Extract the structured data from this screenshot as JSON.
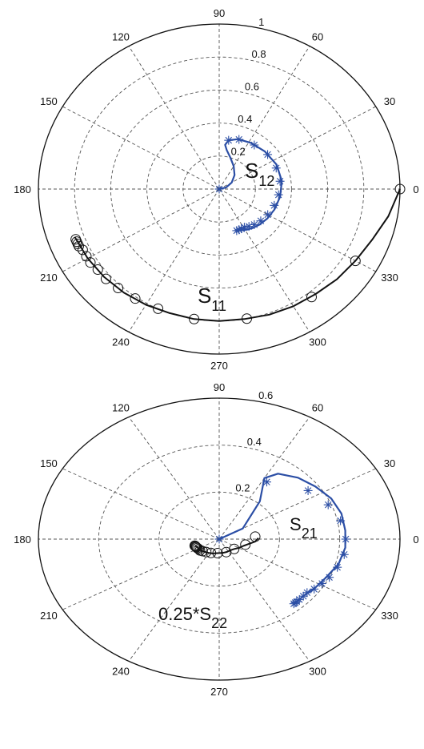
{
  "chart_data": [
    {
      "type": "scatter",
      "subtype": "polar",
      "rmax": 1,
      "radial_ticks": [
        "0.2",
        "0.4",
        "0.6",
        "0.8",
        "1"
      ],
      "angle_labels": [
        "0",
        "30",
        "60",
        "90",
        "120",
        "150",
        "180",
        "210",
        "240",
        "270",
        "300",
        "330"
      ],
      "grid": true,
      "annotations": [
        {
          "base": "S",
          "sub": "12"
        },
        {
          "base": "S",
          "sub": "11"
        }
      ],
      "series": [
        {
          "color": "#2b4ea5",
          "style": "line",
          "theta_deg": [
            0,
            15,
            30,
            45,
            60,
            72,
            80,
            83,
            80,
            71,
            58,
            42,
            25,
            8,
            -8,
            -22,
            -34,
            -44,
            -52,
            -58,
            -63,
            -67,
            -70
          ],
          "r": [
            0.0,
            0.04,
            0.08,
            0.12,
            0.16,
            0.2,
            0.24,
            0.27,
            0.3,
            0.32,
            0.33,
            0.34,
            0.35,
            0.35,
            0.34,
            0.33,
            0.32,
            0.31,
            0.3,
            0.29,
            0.28,
            0.27,
            0.27
          ]
        },
        {
          "color": "#2b4ea5",
          "style": "markers",
          "marker": "asterisk",
          "theta_deg": [
            0,
            80,
            70,
            54,
            38,
            22,
            8,
            -6,
            -18,
            -30,
            -40,
            -48,
            -54,
            -59,
            -63,
            -66,
            -69
          ],
          "r": [
            0.0,
            0.3,
            0.32,
            0.33,
            0.34,
            0.34,
            0.34,
            0.33,
            0.32,
            0.31,
            0.3,
            0.29,
            0.28,
            0.27,
            0.27,
            0.27,
            0.27
          ]
        },
        {
          "color": "#111111",
          "style": "line",
          "theta_deg": [
            0,
            -10,
            -20,
            -30,
            -40,
            -50,
            -60,
            -70,
            -80,
            -90,
            -100,
            -110,
            -120,
            -130,
            -140,
            -150,
            -160
          ],
          "r": [
            1.0,
            0.95,
            0.9,
            0.87,
            0.85,
            0.83,
            0.82,
            0.81,
            0.8,
            0.8,
            0.8,
            0.8,
            0.81,
            0.82,
            0.83,
            0.84,
            0.85
          ]
        },
        {
          "color": "#111111",
          "style": "markers",
          "marker": "circle",
          "theta_deg": [
            0,
            -30,
            -52,
            -79,
            -100,
            -115,
            -125,
            -133,
            -139,
            -144,
            -148,
            -151,
            -154,
            -156,
            -157,
            -158,
            -159
          ],
          "r": [
            1.0,
            0.87,
            0.83,
            0.8,
            0.8,
            0.8,
            0.81,
            0.82,
            0.83,
            0.83,
            0.84,
            0.84,
            0.84,
            0.85,
            0.85,
            0.85,
            0.85
          ]
        }
      ]
    },
    {
      "type": "scatter",
      "subtype": "polar",
      "rmax": 0.6,
      "radial_ticks": [
        "0.2",
        "0.4",
        "0.6"
      ],
      "angle_labels": [
        "0",
        "30",
        "60",
        "90",
        "120",
        "150",
        "180",
        "210",
        "240",
        "270",
        "300",
        "330"
      ],
      "grid": true,
      "annotations": [
        {
          "base": "S",
          "sub": "21"
        },
        {
          "base": "0.25*S",
          "sub": "22"
        }
      ],
      "series": [
        {
          "color": "#2b4ea5",
          "style": "line",
          "theta_deg": [
            0,
            30,
            50,
            60,
            55,
            45,
            35,
            25,
            15,
            5,
            -5,
            -15,
            -25,
            -33,
            -40,
            -45,
            -48
          ],
          "r": [
            0.0,
            0.09,
            0.21,
            0.3,
            0.34,
            0.37,
            0.39,
            0.41,
            0.42,
            0.42,
            0.42,
            0.41,
            0.39,
            0.38,
            0.37,
            0.37,
            0.37
          ]
        },
        {
          "color": "#2b4ea5",
          "style": "markers",
          "marker": "asterisk",
          "theta_deg": [
            0,
            57,
            35,
            22,
            11,
            0,
            -9,
            -17,
            -24,
            -29,
            -34,
            -38,
            -41,
            -44,
            -46,
            -47,
            -48
          ],
          "r": [
            0.0,
            0.29,
            0.36,
            0.39,
            0.41,
            0.42,
            0.42,
            0.41,
            0.4,
            0.39,
            0.38,
            0.37,
            0.37,
            0.37,
            0.37,
            0.37,
            0.37
          ]
        },
        {
          "color": "#111111",
          "style": "line",
          "theta_deg": [
            2,
            -5,
            -12,
            -20,
            -30,
            -40,
            -52,
            -65,
            -80,
            -95,
            -110,
            -125,
            -137,
            -147,
            -155,
            -160
          ],
          "r": [
            0.13,
            0.12,
            0.1,
            0.085,
            0.075,
            0.065,
            0.06,
            0.06,
            0.06,
            0.06,
            0.065,
            0.07,
            0.075,
            0.08,
            0.08,
            0.085
          ]
        },
        {
          "color": "#111111",
          "style": "markers",
          "marker": "circle",
          "theta_deg": [
            5,
            -15,
            -40,
            -67,
            -95,
            -115,
            -128,
            -137,
            -143,
            -148,
            -152,
            -155,
            -157,
            -159,
            -160,
            -161
          ],
          "r": [
            0.12,
            0.09,
            0.065,
            0.06,
            0.06,
            0.065,
            0.07,
            0.075,
            0.08,
            0.08,
            0.082,
            0.083,
            0.084,
            0.085,
            0.085,
            0.086
          ]
        }
      ]
    }
  ]
}
